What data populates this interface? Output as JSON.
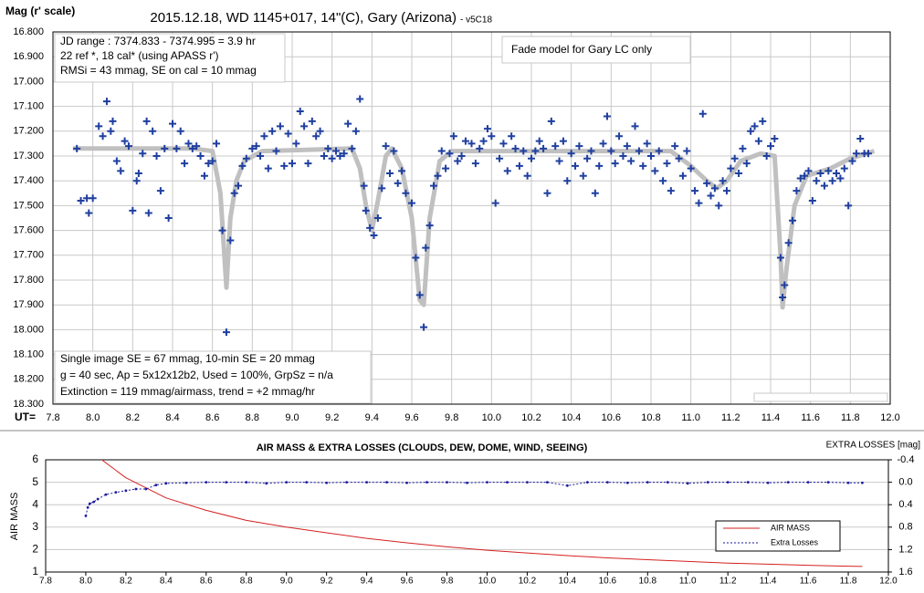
{
  "chart_data": [
    {
      "type": "scatter",
      "title": "2015.12.18, WD 1145+017, 14\"(C), Gary (Arizona)",
      "title_suffix": "- v5C18",
      "y_label": "Mag (r' scale)",
      "x_label": "UT=",
      "annotations": [
        "JD range : 7374.833 - 7374.995 = 3.9 hr",
        "22 ref *, 18 cal* (using APASS r')",
        "RMSi = 43 mmag, SE on cal = 10 mmag",
        "Fade model for Gary LC only",
        "Single image SE = 67 mmag, 10-min SE = 20 mmag",
        "g = 40 sec, Ap = 5x12x12b2, Used = 100%, GrpSz = n/a",
        "Extinction = 119 mmag/airmass, trend = +2 mmag/hr"
      ],
      "grid": "both",
      "xlim": [
        7.8,
        12.0
      ],
      "xticks": [
        7.8,
        {
          "value": 8,
          "label": "8.0"
        },
        8.2,
        8.4,
        8.6,
        8.8,
        {
          "value": 9,
          "label": "9.0"
        },
        9.2,
        9.4,
        9.6,
        9.8,
        {
          "value": 10,
          "label": "10.0"
        },
        10.2,
        10.4,
        10.6,
        10.8,
        {
          "value": 11,
          "label": "11.0"
        },
        11.2,
        11.4,
        11.6,
        11.8,
        {
          "value": 12,
          "label": "12.0"
        }
      ],
      "ylim": [
        18.3,
        16.8
      ],
      "yticks": [
        {
          "value": 16.8,
          "label": "16.800"
        },
        {
          "value": 16.9,
          "label": "16.900"
        },
        {
          "value": 17,
          "label": "17.000"
        },
        {
          "value": 17.1,
          "label": "17.100"
        },
        {
          "value": 17.2,
          "label": "17.200"
        },
        {
          "value": 17.3,
          "label": "17.300"
        },
        {
          "value": 17.4,
          "label": "17.400"
        },
        {
          "value": 17.5,
          "label": "17.500"
        },
        {
          "value": 17.6,
          "label": "17.600"
        },
        {
          "value": 17.7,
          "label": "17.700"
        },
        {
          "value": 17.8,
          "label": "17.800"
        },
        {
          "value": 17.9,
          "label": "17.900"
        },
        {
          "value": 18,
          "label": "18.000"
        },
        {
          "value": 18.1,
          "label": "18.100"
        },
        {
          "value": 18.2,
          "label": "18.200"
        },
        {
          "value": 18.3,
          "label": "18.300"
        }
      ],
      "series": [
        {
          "color": "#1f3f9f",
          "marker": "plus",
          "x": [
            7.92,
            7.94,
            7.97,
            7.98,
            8.0,
            8.03,
            8.05,
            8.07,
            8.09,
            8.1,
            8.12,
            8.14,
            8.16,
            8.18,
            8.2,
            8.22,
            8.23,
            8.25,
            8.27,
            8.28,
            8.3,
            8.32,
            8.34,
            8.36,
            8.38,
            8.4,
            8.42,
            8.44,
            8.46,
            8.48,
            8.5,
            8.52,
            8.54,
            8.56,
            8.58,
            8.6,
            8.62,
            8.65,
            8.67,
            8.69,
            8.71,
            8.73,
            8.75,
            8.77,
            8.8,
            8.82,
            8.84,
            8.86,
            8.88,
            8.9,
            8.92,
            8.94,
            8.96,
            8.98,
            9.0,
            9.02,
            9.04,
            9.06,
            9.08,
            9.1,
            9.12,
            9.14,
            9.16,
            9.18,
            9.2,
            9.22,
            9.24,
            9.26,
            9.28,
            9.3,
            9.32,
            9.34,
            9.36,
            9.37,
            9.39,
            9.41,
            9.43,
            9.45,
            9.47,
            9.49,
            9.51,
            9.53,
            9.55,
            9.57,
            9.6,
            9.62,
            9.64,
            9.66,
            9.67,
            9.69,
            9.71,
            9.73,
            9.75,
            9.77,
            9.79,
            9.81,
            9.83,
            9.85,
            9.87,
            9.9,
            9.92,
            9.94,
            9.96,
            9.98,
            10.0,
            10.02,
            10.04,
            10.06,
            10.08,
            10.1,
            10.12,
            10.14,
            10.16,
            10.18,
            10.2,
            10.22,
            10.24,
            10.26,
            10.28,
            10.3,
            10.32,
            10.34,
            10.36,
            10.38,
            10.4,
            10.42,
            10.44,
            10.46,
            10.48,
            10.5,
            10.52,
            10.54,
            10.56,
            10.58,
            10.6,
            10.62,
            10.64,
            10.66,
            10.68,
            10.7,
            10.72,
            10.74,
            10.76,
            10.78,
            10.8,
            10.82,
            10.84,
            10.86,
            10.88,
            10.9,
            10.92,
            10.94,
            10.96,
            10.98,
            11.0,
            11.02,
            11.04,
            11.06,
            11.08,
            11.1,
            11.12,
            11.14,
            11.16,
            11.18,
            11.2,
            11.22,
            11.24,
            11.26,
            11.28,
            11.3,
            11.32,
            11.34,
            11.36,
            11.38,
            11.4,
            11.42,
            11.45,
            11.46,
            11.47,
            11.49,
            11.51,
            11.53,
            11.55,
            11.57,
            11.59,
            11.61,
            11.63,
            11.65,
            11.67,
            11.69,
            11.71,
            11.73,
            11.75,
            11.77,
            11.79,
            11.81,
            11.83,
            11.85,
            11.87,
            11.89
          ],
          "values": [
            17.27,
            17.48,
            17.47,
            17.53,
            17.47,
            17.18,
            17.22,
            17.08,
            17.2,
            17.16,
            17.32,
            17.36,
            17.24,
            17.26,
            17.52,
            17.4,
            17.37,
            17.29,
            17.16,
            17.53,
            17.2,
            17.3,
            17.44,
            17.27,
            17.55,
            17.17,
            17.27,
            17.2,
            17.33,
            17.25,
            17.27,
            17.26,
            17.3,
            17.38,
            17.33,
            17.32,
            17.25,
            17.6,
            18.01,
            17.64,
            17.45,
            17.42,
            17.34,
            17.31,
            17.27,
            17.26,
            17.3,
            17.22,
            17.35,
            17.2,
            17.28,
            17.18,
            17.34,
            17.21,
            17.33,
            17.25,
            17.12,
            17.18,
            17.33,
            17.16,
            17.22,
            17.2,
            17.3,
            17.27,
            17.31,
            17.28,
            17.3,
            17.29,
            17.17,
            17.27,
            17.2,
            17.07,
            17.42,
            17.52,
            17.59,
            17.62,
            17.55,
            17.43,
            17.26,
            17.37,
            17.28,
            17.41,
            17.36,
            17.45,
            17.49,
            17.71,
            17.86,
            17.99,
            17.67,
            17.58,
            17.42,
            17.38,
            17.28,
            17.35,
            17.29,
            17.22,
            17.32,
            17.3,
            17.24,
            17.25,
            17.33,
            17.27,
            17.24,
            17.19,
            17.22,
            17.49,
            17.31,
            17.25,
            17.36,
            17.22,
            17.27,
            17.34,
            17.28,
            17.38,
            17.31,
            17.28,
            17.24,
            17.27,
            17.45,
            17.16,
            17.26,
            17.32,
            17.24,
            17.4,
            17.29,
            17.34,
            17.26,
            17.38,
            17.31,
            17.28,
            17.45,
            17.34,
            17.25,
            17.14,
            17.28,
            17.33,
            17.22,
            17.3,
            17.26,
            17.32,
            17.18,
            17.28,
            17.34,
            17.25,
            17.3,
            17.36,
            17.28,
            17.4,
            17.33,
            17.44,
            17.26,
            17.31,
            17.38,
            17.28,
            17.35,
            17.44,
            17.49,
            17.13,
            17.41,
            17.46,
            17.43,
            17.5,
            17.4,
            17.44,
            17.35,
            17.31,
            17.37,
            17.27,
            17.33,
            17.2,
            17.18,
            17.24,
            17.16,
            17.3,
            17.26,
            17.23,
            17.71,
            17.87,
            17.82,
            17.65,
            17.56,
            17.44,
            17.39,
            17.38,
            17.36,
            17.48,
            17.4,
            17.37,
            17.42,
            17.36,
            17.4,
            17.37,
            17.39,
            17.35,
            17.5,
            17.32,
            17.29,
            17.23,
            17.29,
            17.29
          ]
        },
        {
          "color": "#c0c0c0",
          "x": [
            7.9,
            8.5,
            8.6,
            8.64,
            8.67,
            8.69,
            8.72,
            8.76,
            8.85,
            9.3,
            9.34,
            9.37,
            9.4,
            9.43,
            9.47,
            9.5,
            9.55,
            9.6,
            9.64,
            9.66,
            9.69,
            9.74,
            9.8,
            10.9,
            11.0,
            11.08,
            11.13,
            11.18,
            11.25,
            11.35,
            11.42,
            11.45,
            11.46,
            11.48,
            11.52,
            11.58,
            11.7,
            11.8,
            11.92
          ],
          "values": [
            17.27,
            17.27,
            17.28,
            17.45,
            17.83,
            17.55,
            17.4,
            17.32,
            17.28,
            17.27,
            17.35,
            17.5,
            17.6,
            17.48,
            17.3,
            17.27,
            17.35,
            17.55,
            17.88,
            17.9,
            17.55,
            17.32,
            17.28,
            17.28,
            17.34,
            17.4,
            17.43,
            17.4,
            17.32,
            17.29,
            17.3,
            17.7,
            17.91,
            17.75,
            17.5,
            17.38,
            17.35,
            17.31,
            17.28
          ]
        }
      ]
    },
    {
      "type": "line",
      "title": "AIR MASS & EXTRA LOSSES (CLOUDS, DEW, DOME, WIND, SEEING)",
      "y_label": "AIR MASS",
      "y2_label": "EXTRA LOSSES [mag]",
      "grid": "y",
      "xlim": [
        7.8,
        12.0
      ],
      "xticks": [
        7.8,
        {
          "value": 8,
          "label": "8.0"
        },
        8.2,
        8.4,
        8.6,
        8.8,
        {
          "value": 9,
          "label": "9.0"
        },
        9.2,
        9.4,
        9.6,
        9.8,
        {
          "value": 10,
          "label": "10.0"
        },
        10.2,
        10.4,
        10.6,
        10.8,
        {
          "value": 11,
          "label": "11.0"
        },
        11.2,
        11.4,
        11.6,
        11.8,
        {
          "value": 12,
          "label": "12.0"
        }
      ],
      "ylim": [
        1,
        6
      ],
      "yticks": [
        1,
        2,
        3,
        4,
        5,
        6
      ],
      "y2lim": [
        1.6,
        -0.4
      ],
      "y2ticks": [
        -0.4,
        {
          "value": 0,
          "label": "0.0"
        },
        0.4,
        0.8,
        1.2,
        1.6
      ],
      "series": [
        {
          "name": "AIR MASS",
          "color": "#d62020",
          "x": [
            8.08,
            8.2,
            8.4,
            8.6,
            8.8,
            9.0,
            9.2,
            9.4,
            9.6,
            9.8,
            10.0,
            10.2,
            10.4,
            10.6,
            10.8,
            11.0,
            11.2,
            11.4,
            11.6,
            11.8,
            11.87
          ],
          "values": [
            6.0,
            5.2,
            4.3,
            3.75,
            3.3,
            3.0,
            2.75,
            2.5,
            2.3,
            2.12,
            1.97,
            1.85,
            1.73,
            1.63,
            1.55,
            1.47,
            1.4,
            1.35,
            1.3,
            1.26,
            1.25
          ]
        },
        {
          "name": "Extra Losses",
          "color": "#1a1aa0",
          "axis": "y2",
          "marker": "dot",
          "x": [
            8.0,
            8.01,
            8.02,
            8.04,
            8.06,
            8.1,
            8.15,
            8.2,
            8.25,
            8.3,
            8.35,
            8.4,
            8.5,
            8.6,
            8.7,
            8.8,
            8.9,
            9.0,
            9.1,
            9.2,
            9.3,
            9.4,
            9.5,
            9.6,
            9.7,
            9.8,
            9.9,
            10.0,
            10.1,
            10.2,
            10.3,
            10.4,
            10.5,
            10.6,
            10.7,
            10.8,
            10.9,
            11.0,
            11.1,
            11.2,
            11.3,
            11.4,
            11.5,
            11.6,
            11.7,
            11.8,
            11.87
          ],
          "values": [
            0.6,
            0.45,
            0.38,
            0.35,
            0.3,
            0.22,
            0.18,
            0.15,
            0.12,
            0.12,
            0.05,
            0.02,
            0.01,
            0.0,
            0.0,
            0.0,
            0.02,
            0.0,
            0.0,
            0.01,
            0.0,
            0.0,
            0.0,
            0.01,
            0.0,
            0.0,
            0.01,
            0.0,
            0.0,
            0.0,
            0.0,
            0.06,
            0.0,
            0.0,
            0.01,
            0.0,
            0.0,
            0.02,
            0.0,
            0.0,
            0.0,
            0.01,
            0.0,
            0.0,
            0.0,
            0.01,
            0.01
          ]
        }
      ]
    }
  ]
}
